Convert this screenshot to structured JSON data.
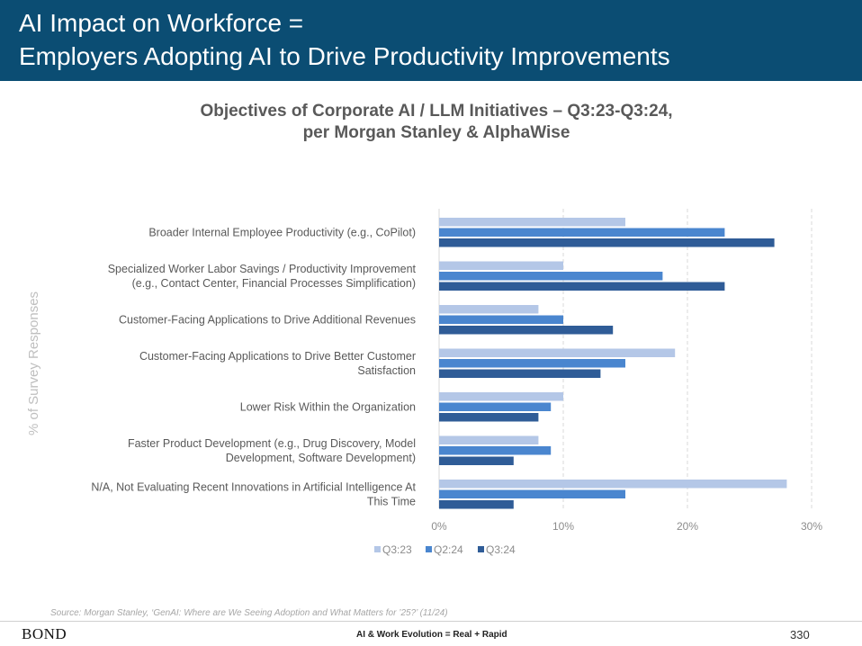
{
  "header": {
    "title_line1": "AI Impact on Workforce =",
    "title_line2": "Employers Adopting AI to Drive Productivity Improvements"
  },
  "colors": {
    "header_bg": "#0b4d73",
    "series": [
      "#b4c7e7",
      "#4a86cf",
      "#2f5c97"
    ]
  },
  "chart_data": {
    "type": "bar",
    "orientation": "horizontal",
    "title_line1": "Objectives of Corporate AI / LLM Initiatives – Q3:23-Q3:24,",
    "title_line2": "per Morgan Stanley & AlphaWise",
    "ylabel": "% of Survey Responses",
    "categories": [
      [
        "Broader Internal Employee Productivity (e.g., CoPilot)"
      ],
      [
        "Specialized Worker Labor Savings / Productivity Improvement",
        "(e.g., Contact Center, Financial Processes Simplification)"
      ],
      [
        "Customer-Facing Applications to Drive Additional Revenues"
      ],
      [
        "Customer-Facing Applications to Drive Better Customer",
        "Satisfaction"
      ],
      [
        "Lower Risk Within the Organization"
      ],
      [
        "Faster Product Development (e.g., Drug Discovery, Model",
        "Development, Software Development)"
      ],
      [
        "N/A, Not Evaluating Recent Innovations in Artificial Intelligence At",
        "This Time"
      ]
    ],
    "series": [
      {
        "name": "Q3:23",
        "values": [
          15,
          10,
          8,
          19,
          10,
          8,
          28
        ]
      },
      {
        "name": "Q2:24",
        "values": [
          23,
          18,
          10,
          15,
          9,
          9,
          15
        ]
      },
      {
        "name": "Q3:24",
        "values": [
          27,
          23,
          14,
          13,
          8,
          6,
          6
        ]
      }
    ],
    "xlim": [
      0,
      30
    ],
    "xticks": [
      0,
      10,
      20,
      30
    ],
    "xtick_labels": [
      "0%",
      "10%",
      "20%",
      "30%"
    ],
    "grid": "vertical dashed",
    "legend_position": "bottom"
  },
  "footer": {
    "source": "Source: Morgan Stanley, ‘GenAI: Where are We Seeing Adoption and What Matters for ’25?’ (11/24)",
    "brand": "BOND",
    "center": "AI & Work Evolution = Real + Rapid",
    "page": "330"
  }
}
